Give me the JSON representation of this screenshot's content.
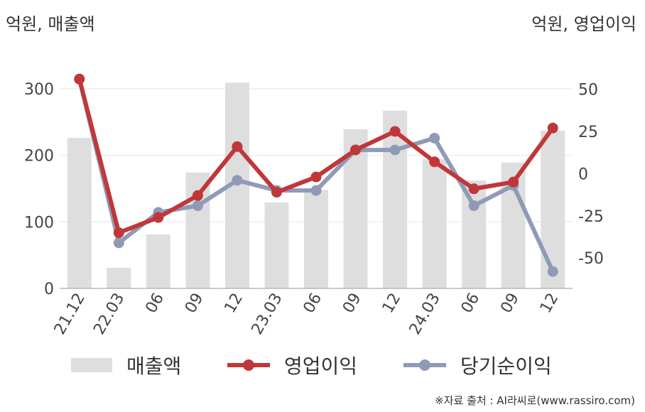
{
  "chart_data": {
    "type": "bar+line",
    "left_axis_label": "억원, 매출액",
    "right_axis_label": "억원, 영업이익",
    "categories": [
      "21.12",
      "22.03",
      "06",
      "09",
      "12",
      "23.03",
      "06",
      "09",
      "12",
      "24.03",
      "06",
      "09",
      "12"
    ],
    "left_ticks": [
      0,
      100,
      200,
      300
    ],
    "right_ticks": [
      50,
      25,
      0,
      -25,
      -50
    ],
    "left_range": [
      0,
      350
    ],
    "right_range": [
      -68,
      70
    ],
    "series": [
      {
        "name": "매출액",
        "type": "bar",
        "axis": "left",
        "color": "#dedede",
        "values": [
          226,
          31,
          81,
          174,
          309,
          129,
          148,
          239,
          267,
          194,
          162,
          189,
          237
        ]
      },
      {
        "name": "영업이익",
        "type": "line",
        "axis": "right",
        "color": "#c0373a",
        "values": [
          56,
          -35,
          -26,
          -13,
          16,
          -11,
          -2,
          14,
          25,
          7,
          -9,
          -5,
          27
        ]
      },
      {
        "name": "당기순이익",
        "type": "line",
        "axis": "right",
        "color": "#8f9bb6",
        "values": [
          56,
          -41,
          -23,
          -19,
          -4,
          -10,
          -10,
          14,
          14,
          21,
          -19,
          -7,
          -58
        ]
      }
    ],
    "grid": true,
    "legend_position": "bottom"
  },
  "source": "※자료 출처 : AI라씨로(www.rassiro.com)"
}
